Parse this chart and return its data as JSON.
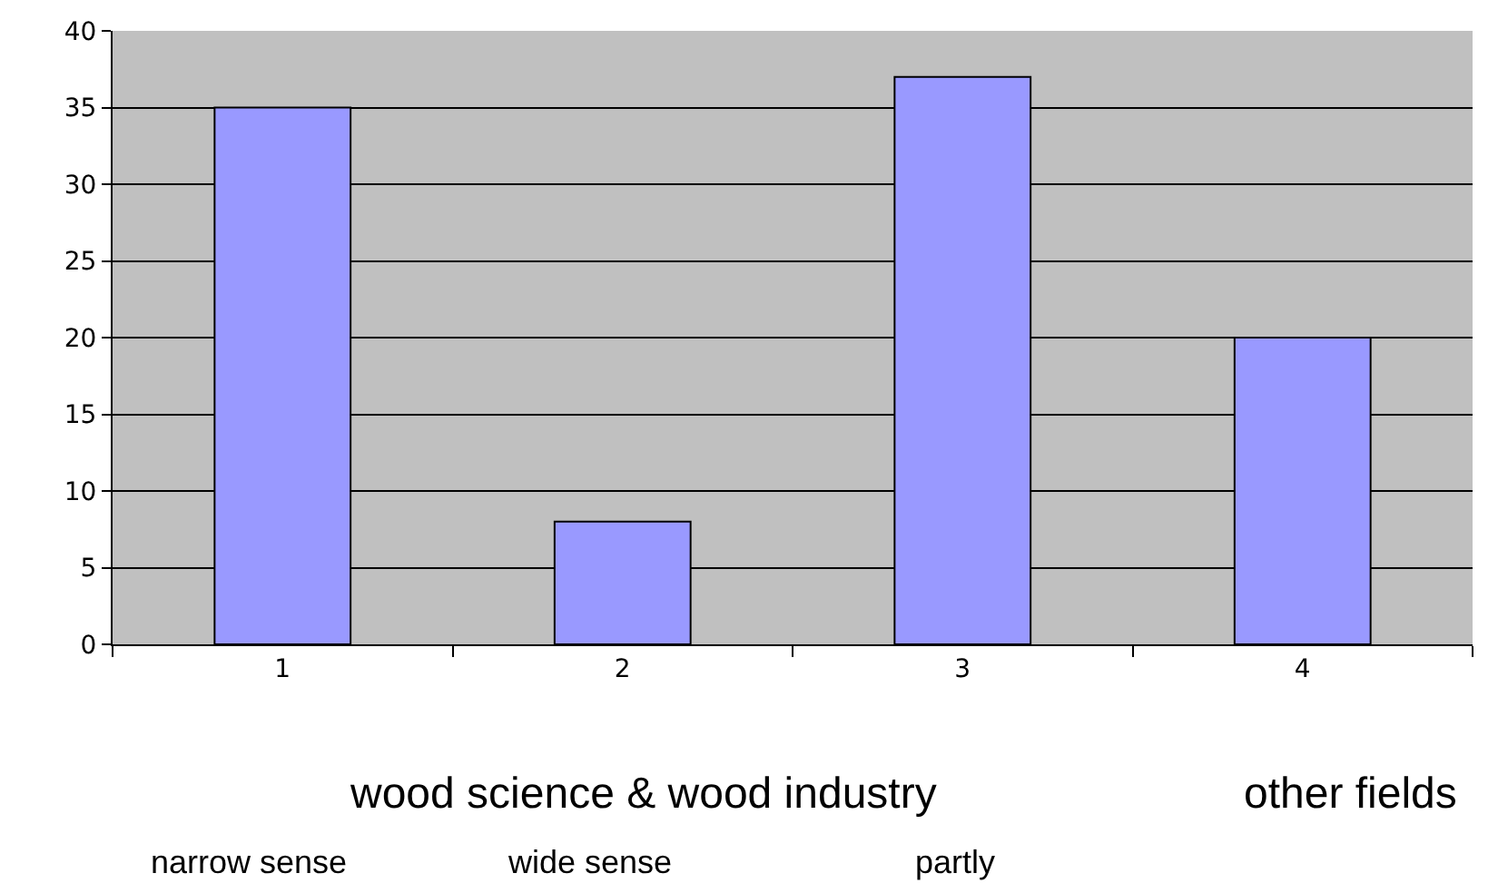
{
  "chart_data": {
    "type": "bar",
    "categories": [
      "1",
      "2",
      "3",
      "4"
    ],
    "values": [
      35,
      8,
      37,
      20
    ],
    "color": "#9999ff",
    "ylim": [
      0,
      40
    ],
    "yticks": [
      0,
      5,
      10,
      15,
      20,
      25,
      30,
      35,
      40
    ],
    "grid": "y",
    "annotations": [
      "wood science & wood industry",
      "other fields",
      "narrow sense",
      "wide sense",
      "partly"
    ]
  }
}
